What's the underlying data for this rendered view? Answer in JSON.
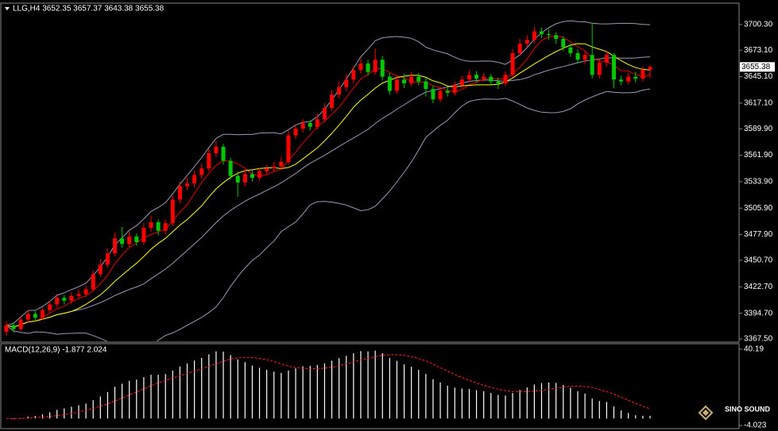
{
  "chart_data": {
    "type": "candlestick",
    "title": "LLG,H4 3652.35 3657.37 3643.38 3655.38",
    "open": [
      3375,
      3382,
      3378,
      3388,
      3394,
      3390,
      3398,
      3404,
      3411,
      3408,
      3413,
      3415,
      3420,
      3436,
      3446,
      3458,
      3474,
      3468,
      3476,
      3470,
      3485,
      3491,
      3482,
      3490,
      3515,
      3529,
      3532,
      3541,
      3548,
      3564,
      3571,
      3556,
      3540,
      3533,
      3542,
      3538,
      3545,
      3548,
      3550,
      3555,
      3583,
      3590,
      3596,
      3592,
      3600,
      3612,
      3626,
      3634,
      3642,
      3652,
      3659,
      3650,
      3663,
      3645,
      3630,
      3642,
      3638,
      3645,
      3640,
      3632,
      3621,
      3630,
      3628,
      3636,
      3642,
      3647,
      3643,
      3645,
      3640,
      3638,
      3647,
      3670,
      3680,
      3684,
      3693,
      3690,
      3689,
      3685,
      3676,
      3670,
      3663,
      3668,
      3647,
      3660,
      3668,
      3642,
      3640,
      3645,
      3643,
      3652.35
    ],
    "high": [
      3386,
      3385,
      3391,
      3398,
      3397,
      3401,
      3408,
      3415,
      3414,
      3417,
      3420,
      3424,
      3440,
      3452,
      3463,
      3480,
      3486,
      3481,
      3479,
      3490,
      3498,
      3494,
      3494,
      3519,
      3534,
      3538,
      3546,
      3553,
      3569,
      3577,
      3574,
      3559,
      3545,
      3547,
      3546,
      3549,
      3552,
      3555,
      3560,
      3588,
      3594,
      3600,
      3599,
      3606,
      3617,
      3631,
      3640,
      3648,
      3656,
      3664,
      3663,
      3675,
      3667,
      3649,
      3646,
      3648,
      3650,
      3649,
      3644,
      3636,
      3634,
      3634,
      3640,
      3646,
      3652,
      3651,
      3649,
      3648,
      3644,
      3651,
      3674,
      3685,
      3689,
      3698,
      3697,
      3695,
      3692,
      3688,
      3680,
      3674,
      3672,
      3702,
      3664,
      3672,
      3670,
      3646,
      3649,
      3650,
      3656,
      3657.37
    ],
    "low": [
      3371,
      3374,
      3376,
      3385,
      3386,
      3388,
      3395,
      3401,
      3404,
      3405,
      3410,
      3412,
      3418,
      3433,
      3443,
      3455,
      3464,
      3465,
      3466,
      3467,
      3481,
      3477,
      3478,
      3487,
      3511,
      3525,
      3528,
      3537,
      3545,
      3560,
      3552,
      3536,
      3518,
      3529,
      3534,
      3535,
      3541,
      3544,
      3547,
      3552,
      3579,
      3586,
      3588,
      3589,
      3597,
      3609,
      3622,
      3630,
      3638,
      3648,
      3646,
      3647,
      3641,
      3626,
      3627,
      3633,
      3635,
      3636,
      3624,
      3617,
      3618,
      3624,
      3625,
      3633,
      3639,
      3639,
      3640,
      3636,
      3632,
      3635,
      3644,
      3667,
      3676,
      3680,
      3686,
      3684,
      3680,
      3672,
      3666,
      3659,
      3658,
      3643,
      3643,
      3656,
      3633,
      3636,
      3637,
      3639,
      3640,
      3643.38
    ],
    "close": [
      3382,
      3378,
      3388,
      3394,
      3390,
      3398,
      3404,
      3411,
      3408,
      3413,
      3415,
      3420,
      3436,
      3446,
      3458,
      3474,
      3468,
      3476,
      3470,
      3485,
      3491,
      3482,
      3490,
      3515,
      3529,
      3532,
      3541,
      3548,
      3564,
      3571,
      3556,
      3540,
      3533,
      3542,
      3538,
      3545,
      3548,
      3550,
      3555,
      3583,
      3590,
      3596,
      3592,
      3600,
      3612,
      3626,
      3634,
      3642,
      3652,
      3659,
      3650,
      3663,
      3645,
      3630,
      3642,
      3638,
      3645,
      3640,
      3632,
      3621,
      3630,
      3628,
      3636,
      3642,
      3647,
      3643,
      3645,
      3640,
      3638,
      3647,
      3670,
      3680,
      3684,
      3693,
      3690,
      3689,
      3685,
      3676,
      3670,
      3663,
      3668,
      3647,
      3660,
      3668,
      3642,
      3640,
      3645,
      3643,
      3652.35,
      3655.38
    ],
    "up_color": "#ff0000",
    "down_color": "#00c800",
    "ylim": [
      3365,
      3722
    ],
    "yticks": [
      {
        "value": 3367.5,
        "label": "3367.50"
      },
      {
        "value": 3394.7,
        "label": "3394.70"
      },
      {
        "value": 3422.7,
        "label": "3422.70"
      },
      {
        "value": 3450.7,
        "label": "3450.70"
      },
      {
        "value": 3477.9,
        "label": "3477.90"
      },
      {
        "value": 3505.9,
        "label": "3505.90"
      },
      {
        "value": 3533.9,
        "label": "3533.90"
      },
      {
        "value": 3561.9,
        "label": "3561.90"
      },
      {
        "value": 3589.9,
        "label": "3589.90"
      },
      {
        "value": 3617.1,
        "label": "3617.10"
      },
      {
        "value": 3645.1,
        "label": "3645.10"
      },
      {
        "value": 3673.1,
        "label": "3673.10"
      },
      {
        "value": 3700.3,
        "label": "3700.30"
      }
    ],
    "indicators": {
      "bands_period": 20,
      "bands_dev": 2,
      "bands_color": "#9a9ab8",
      "ma": [
        {
          "period": 5,
          "color": "#e00000"
        },
        {
          "period": 10,
          "color": "#ffff00"
        }
      ]
    },
    "macd": {
      "title": "MACD(12,26,9) -1.877 2.024",
      "fast": 12,
      "slow": 26,
      "signal": 9,
      "bar_color": "#ffffff",
      "signal_color": "#ff2020",
      "ylim": [
        -4.023,
        40.19
      ],
      "yticks": [
        40.19,
        -4.023
      ]
    },
    "watermark": "SINO SOUND"
  }
}
